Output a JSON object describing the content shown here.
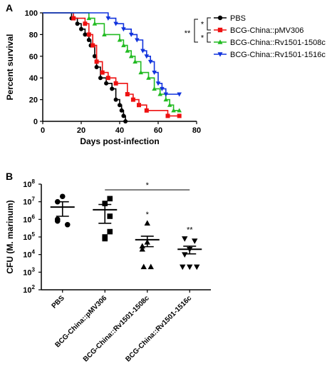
{
  "chart_data": [
    {
      "type": "line",
      "panel": "A",
      "xlabel": "Days post-infection",
      "ylabel": "Percent survival",
      "xlim": [
        0,
        80
      ],
      "ylim": [
        0,
        100
      ],
      "xticks": [
        "0",
        "20",
        "40",
        "60",
        "80"
      ],
      "yticks": [
        "0",
        "20",
        "40",
        "60",
        "80",
        "100"
      ],
      "legend_position": "right",
      "significance": [
        {
          "label": "*",
          "between": [
            "PBS",
            "BCG-China::pMV306"
          ]
        },
        {
          "label": "*",
          "between": [
            "BCG-China::pMV306",
            "BCG-China::Rv1501-1508c"
          ]
        },
        {
          "label": "**",
          "between": [
            "PBS",
            "BCG-China::Rv1501-1508c"
          ]
        }
      ],
      "series": [
        {
          "name": "PBS",
          "color": "#000000",
          "marker": "circle",
          "points": [
            [
              0,
              100
            ],
            [
              15,
              100
            ],
            [
              15,
              95
            ],
            [
              18,
              95
            ],
            [
              18,
              90
            ],
            [
              20,
              90
            ],
            [
              20,
              85
            ],
            [
              22,
              85
            ],
            [
              22,
              80
            ],
            [
              24,
              80
            ],
            [
              24,
              75
            ],
            [
              25,
              75
            ],
            [
              25,
              70
            ],
            [
              27,
              70
            ],
            [
              27,
              60
            ],
            [
              28,
              60
            ],
            [
              28,
              50
            ],
            [
              30,
              50
            ],
            [
              30,
              40
            ],
            [
              33,
              40
            ],
            [
              33,
              35
            ],
            [
              36,
              35
            ],
            [
              36,
              30
            ],
            [
              38,
              30
            ],
            [
              38,
              20
            ],
            [
              40,
              20
            ],
            [
              40,
              15
            ],
            [
              41,
              15
            ],
            [
              41,
              10
            ],
            [
              42,
              10
            ],
            [
              42,
              5
            ],
            [
              43,
              5
            ],
            [
              43,
              0
            ]
          ]
        },
        {
          "name": "BCG-China::pMV306",
          "color": "#ee1111",
          "marker": "square",
          "points": [
            [
              0,
              100
            ],
            [
              16,
              100
            ],
            [
              16,
              95
            ],
            [
              22,
              95
            ],
            [
              22,
              90
            ],
            [
              24,
              90
            ],
            [
              24,
              80
            ],
            [
              26,
              80
            ],
            [
              26,
              70
            ],
            [
              28,
              70
            ],
            [
              28,
              55
            ],
            [
              31,
              55
            ],
            [
              31,
              45
            ],
            [
              34,
              45
            ],
            [
              34,
              40
            ],
            [
              38,
              40
            ],
            [
              38,
              35
            ],
            [
              44,
              35
            ],
            [
              44,
              25
            ],
            [
              47,
              25
            ],
            [
              47,
              20
            ],
            [
              50,
              20
            ],
            [
              50,
              15
            ],
            [
              54,
              15
            ],
            [
              54,
              10
            ],
            [
              65,
              10
            ],
            [
              65,
              5
            ],
            [
              71,
              5
            ]
          ]
        },
        {
          "name": "BCG-China::Rv1501-1508c",
          "color": "#22bb22",
          "marker": "triangle-up",
          "points": [
            [
              0,
              100
            ],
            [
              24,
              100
            ],
            [
              24,
              95
            ],
            [
              27,
              95
            ],
            [
              27,
              90
            ],
            [
              32,
              90
            ],
            [
              32,
              80
            ],
            [
              40,
              80
            ],
            [
              40,
              75
            ],
            [
              42,
              75
            ],
            [
              42,
              70
            ],
            [
              44,
              70
            ],
            [
              44,
              65
            ],
            [
              46,
              65
            ],
            [
              46,
              60
            ],
            [
              48,
              60
            ],
            [
              48,
              55
            ],
            [
              51,
              55
            ],
            [
              51,
              45
            ],
            [
              55,
              45
            ],
            [
              55,
              40
            ],
            [
              58,
              40
            ],
            [
              58,
              30
            ],
            [
              61,
              30
            ],
            [
              61,
              25
            ],
            [
              64,
              25
            ],
            [
              64,
              20
            ],
            [
              66,
              20
            ],
            [
              66,
              15
            ],
            [
              68,
              15
            ],
            [
              68,
              10
            ],
            [
              71,
              10
            ]
          ]
        },
        {
          "name": "BCG-China::Rv1501-1516c",
          "color": "#1133dd",
          "marker": "triangle-down",
          "points": [
            [
              0,
              100
            ],
            [
              34,
              100
            ],
            [
              34,
              95
            ],
            [
              38,
              95
            ],
            [
              38,
              90
            ],
            [
              42,
              90
            ],
            [
              42,
              85
            ],
            [
              46,
              85
            ],
            [
              46,
              80
            ],
            [
              49,
              80
            ],
            [
              49,
              75
            ],
            [
              52,
              75
            ],
            [
              52,
              65
            ],
            [
              54,
              65
            ],
            [
              54,
              60
            ],
            [
              56,
              60
            ],
            [
              56,
              55
            ],
            [
              58,
              55
            ],
            [
              58,
              45
            ],
            [
              60,
              45
            ],
            [
              60,
              35
            ],
            [
              62,
              35
            ],
            [
              62,
              30
            ],
            [
              64,
              30
            ],
            [
              64,
              25
            ],
            [
              71,
              25
            ]
          ]
        }
      ]
    },
    {
      "type": "scatter",
      "panel": "B",
      "ylabel": "CFU (M. marinum)",
      "yscale": "log",
      "ylim_exponents": [
        2,
        8
      ],
      "yticks": [
        {
          "base": "10",
          "exp": "8"
        },
        {
          "base": "10",
          "exp": "7"
        },
        {
          "base": "10",
          "exp": "6"
        },
        {
          "base": "10",
          "exp": "5"
        },
        {
          "base": "10",
          "exp": "4"
        },
        {
          "base": "10",
          "exp": "3"
        },
        {
          "base": "10",
          "exp": "2"
        }
      ],
      "categories": [
        "PBS",
        "BCG-China::pMV306",
        "BCG-China::Rv1501-1508c",
        "BCG-China::Rv1501-1516c"
      ],
      "markers": [
        "circle",
        "square",
        "triangle-up",
        "triangle-down"
      ],
      "values": [
        [
          20000000,
          10000000,
          1000000,
          800000,
          500000
        ],
        [
          15000000,
          8000000,
          1500000,
          200000,
          100000,
          80000
        ],
        [
          600000,
          50000,
          30000,
          20000,
          2000,
          2000
        ],
        [
          80000,
          60000,
          20000,
          10000,
          2000,
          2000,
          2000
        ]
      ],
      "mean": [
        5000000,
        3500000,
        70000,
        20000
      ],
      "sem_low": [
        1500000,
        600000,
        28000,
        11000
      ],
      "sem_high": [
        10000000,
        7000000,
        110000,
        30000
      ],
      "significance": [
        {
          "label": "*",
          "category": 2
        },
        {
          "label": "**",
          "category": 3
        },
        {
          "label": "*",
          "between": [
            1,
            3
          ]
        }
      ]
    }
  ],
  "panels": {
    "a": "A",
    "b": "B"
  }
}
